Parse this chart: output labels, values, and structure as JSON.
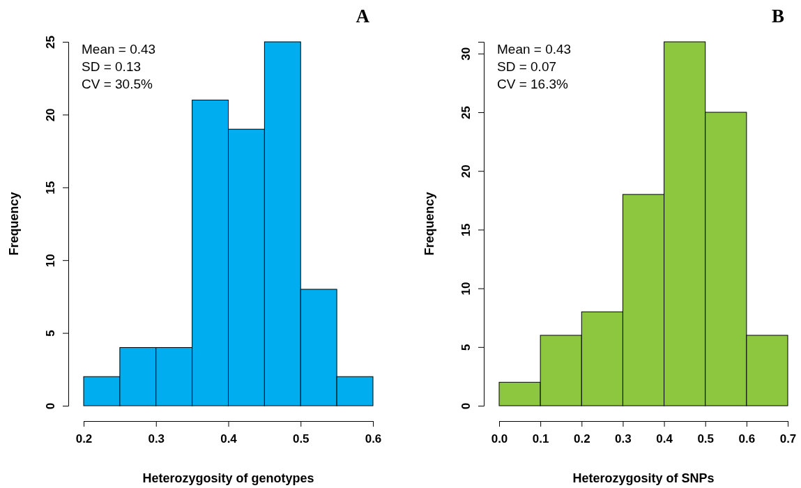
{
  "chart_data": [
    {
      "type": "histogram",
      "title": "A",
      "xlabel": "Heterozygosity of genotypes",
      "ylabel": "Frequency",
      "bins": [
        0.2,
        0.25,
        0.3,
        0.35,
        0.4,
        0.45,
        0.5,
        0.55,
        0.6
      ],
      "values": [
        2,
        4,
        4,
        21,
        19,
        25,
        8,
        2
      ],
      "color": "#00aeef",
      "xlim": [
        0.2,
        0.6
      ],
      "xticks": [
        {
          "value": 0.2,
          "label": "0.2"
        },
        {
          "value": 0.3,
          "label": "0.3"
        },
        {
          "value": 0.4,
          "label": "0.4"
        },
        {
          "value": 0.5,
          "label": "0.5"
        },
        {
          "value": 0.6,
          "label": "0.6"
        }
      ],
      "ylim": [
        0,
        25
      ],
      "yticks": [
        0,
        5,
        10,
        15,
        20,
        25
      ],
      "grid": false,
      "annotations": [
        "Mean = 0.43",
        "SD = 0.13",
        "CV = 30.5%"
      ]
    },
    {
      "type": "histogram",
      "title": "B",
      "xlabel": "Heterozygosity of SNPs",
      "ylabel": "Frequency",
      "bins": [
        0,
        0.1,
        0.2,
        0.3,
        0.4,
        0.5,
        0.6,
        0.7
      ],
      "values": [
        2,
        6,
        8,
        18,
        31,
        25,
        6
      ],
      "color": "#8dc63f",
      "xlim": [
        0,
        0.7
      ],
      "xticks": [
        {
          "value": 0,
          "label": "0.0"
        },
        {
          "value": 0.1,
          "label": "0.1"
        },
        {
          "value": 0.2,
          "label": "0.2"
        },
        {
          "value": 0.3,
          "label": "0.3"
        },
        {
          "value": 0.4,
          "label": "0.4"
        },
        {
          "value": 0.5,
          "label": "0.5"
        },
        {
          "value": 0.6,
          "label": "0.6"
        },
        {
          "value": 0.7,
          "label": "0.7"
        }
      ],
      "ylim": [
        0,
        31
      ],
      "yticks": [
        0,
        5,
        10,
        15,
        20,
        25,
        30
      ],
      "grid": false,
      "annotations": [
        "Mean = 0.43",
        "SD = 0.07",
        "CV = 16.3%"
      ]
    }
  ]
}
